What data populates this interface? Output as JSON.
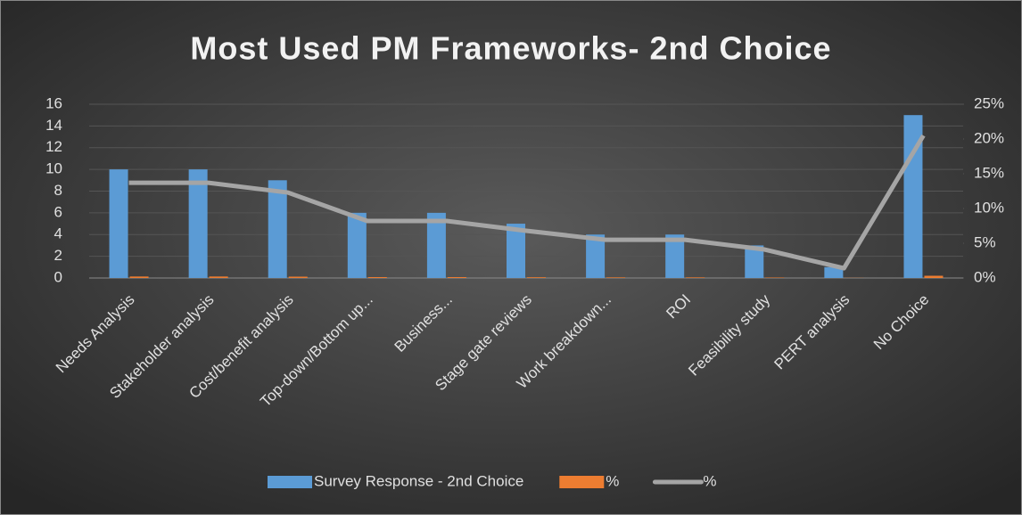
{
  "chart_data": {
    "type": "bar",
    "title": "Most Used PM Frameworks- 2nd Choice",
    "categories": [
      "Needs Analysis",
      "Stakeholder analysis",
      "Cost/benefit analysis",
      "Top-down/Bottom up...",
      "Business...",
      "Stage gate reviews",
      "Work breakdown...",
      "ROI",
      "Feasibility study",
      "PERT analysis",
      "No Choice"
    ],
    "series": [
      {
        "name": "Survey Response - 2nd Choice",
        "type": "bar",
        "color": "#5b9bd5",
        "values": [
          10,
          10,
          9,
          6,
          6,
          5,
          4,
          4,
          3,
          1,
          15
        ]
      },
      {
        "name": "%",
        "type": "bar",
        "color": "#ed7d31",
        "values": [
          0.137,
          0.137,
          0.123,
          0.082,
          0.082,
          0.068,
          0.055,
          0.055,
          0.041,
          0.014,
          0.205
        ]
      },
      {
        "name": "%",
        "type": "line",
        "axis": "y2",
        "color": "#a5a5a5",
        "values": [
          13.7,
          13.7,
          12.3,
          8.2,
          8.2,
          6.8,
          5.5,
          5.5,
          4.1,
          1.4,
          20.5
        ]
      }
    ],
    "ylim": [
      0,
      16
    ],
    "yticks": [
      0,
      2,
      4,
      6,
      8,
      10,
      12,
      14,
      16
    ],
    "y2lim": [
      0,
      25
    ],
    "y2ticks": [
      {
        "value": 0,
        "label": "0%"
      },
      {
        "value": 5,
        "label": "5%"
      },
      {
        "value": 10,
        "label": "10%"
      },
      {
        "value": 15,
        "label": "15%"
      },
      {
        "value": 20,
        "label": "20%"
      },
      {
        "value": 25,
        "label": "25%"
      }
    ],
    "grid": true,
    "legend": "bottom"
  }
}
